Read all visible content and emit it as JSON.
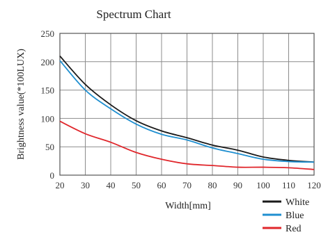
{
  "chart_data": {
    "type": "line",
    "title": "Spectrum Chart",
    "xlabel": "Width[mm]",
    "ylabel": "Brightness value(*100LUX)",
    "xlim": [
      20,
      120
    ],
    "ylim": [
      0,
      250
    ],
    "x_ticks": [
      20,
      30,
      40,
      50,
      60,
      70,
      80,
      90,
      100,
      110,
      120
    ],
    "y_ticks": [
      0,
      50,
      100,
      150,
      200,
      250
    ],
    "grid": true,
    "legend_position": "bottom-right",
    "x": [
      20,
      30,
      40,
      50,
      60,
      70,
      80,
      90,
      100,
      110,
      120
    ],
    "series": [
      {
        "name": "White",
        "color": "#1a1a1a",
        "values": [
          210,
          160,
          124,
          96,
          78,
          66,
          53,
          44,
          32,
          26,
          23
        ]
      },
      {
        "name": "Blue",
        "color": "#1f8fd0",
        "values": [
          202,
          150,
          117,
          90,
          72,
          62,
          48,
          38,
          28,
          24,
          23
        ]
      },
      {
        "name": "Red",
        "color": "#e0262b",
        "values": [
          95,
          73,
          58,
          40,
          28,
          20,
          17,
          14,
          14,
          13,
          10
        ]
      }
    ]
  }
}
